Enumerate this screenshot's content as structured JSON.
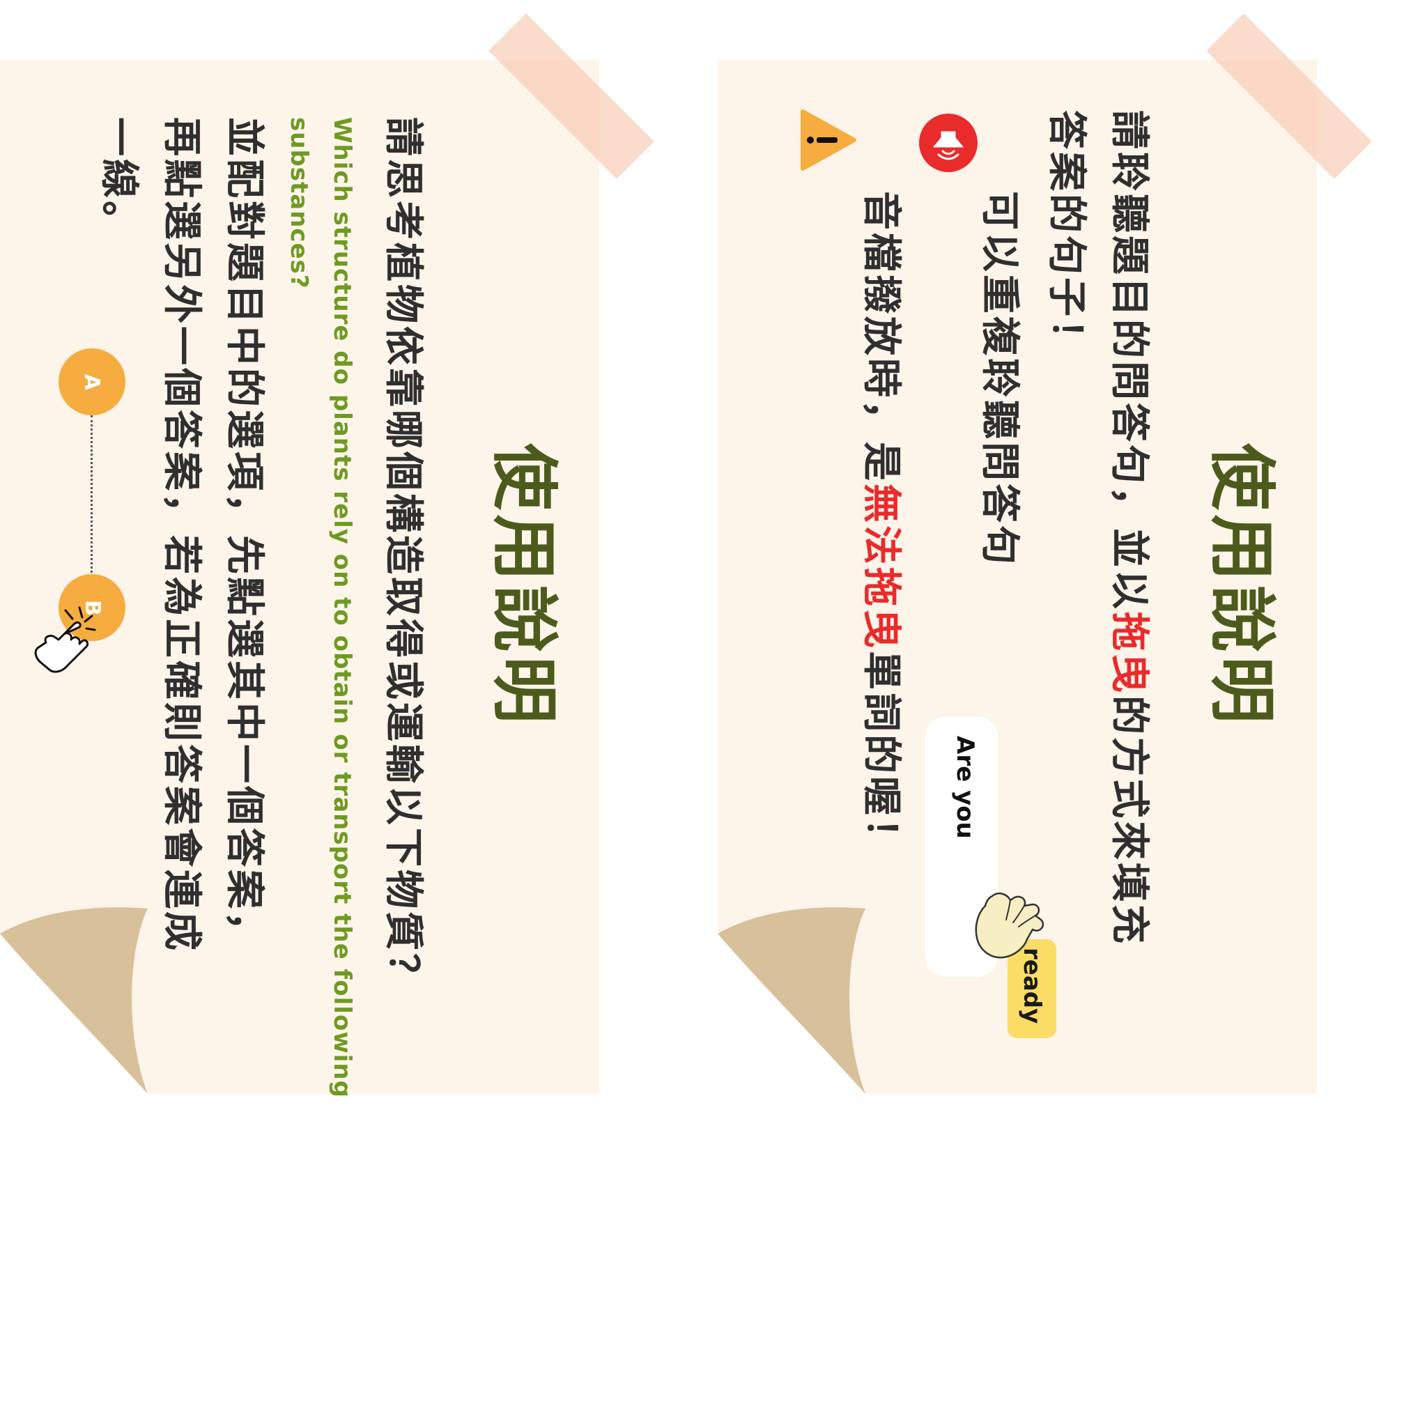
{
  "left_card": {
    "title": "使用說明",
    "question": "請思考植物依靠哪個構造取得或運輸以下物質？",
    "english_line1": "Which structure do plants rely on to obtain or transport the following",
    "english_line2": "substances?",
    "instruction_line1": "並配對題目中的選項，先點選其中一個答案，",
    "instruction_line2": "再點選另外一個答案，若為正確則答案會連成",
    "instruction_line3": "一線。",
    "badge_a": "A",
    "badge_b": "B"
  },
  "right_card": {
    "title": "使用說明",
    "line1_prefix": "請聆聽題目的問答句，並以",
    "line1_highlight": "拖曳",
    "line1_suffix": "的方式來填充",
    "line2": "答案的句子！",
    "replay_text": "可以重複聆聽問答句",
    "warning_prefix": "音檔撥放時，是",
    "warning_highlight": "無法拖曳",
    "warning_suffix": "單詞的喔！",
    "word_card_text": "Are you",
    "word_chip_text": "ready"
  },
  "colors": {
    "paper": "#fdf4ea",
    "title_green": "#4c5b1c",
    "english_green": "#6f9a22",
    "highlight_red": "#e92b2b",
    "badge_orange": "#f6ac3e",
    "chip_yellow": "#fbdc64",
    "curl_tan": "#d8c09a",
    "tape_pink": "#facdb9"
  },
  "icons": [
    "click-hand-icon",
    "speaker-icon",
    "warning-icon",
    "grab-hand-icon"
  ]
}
